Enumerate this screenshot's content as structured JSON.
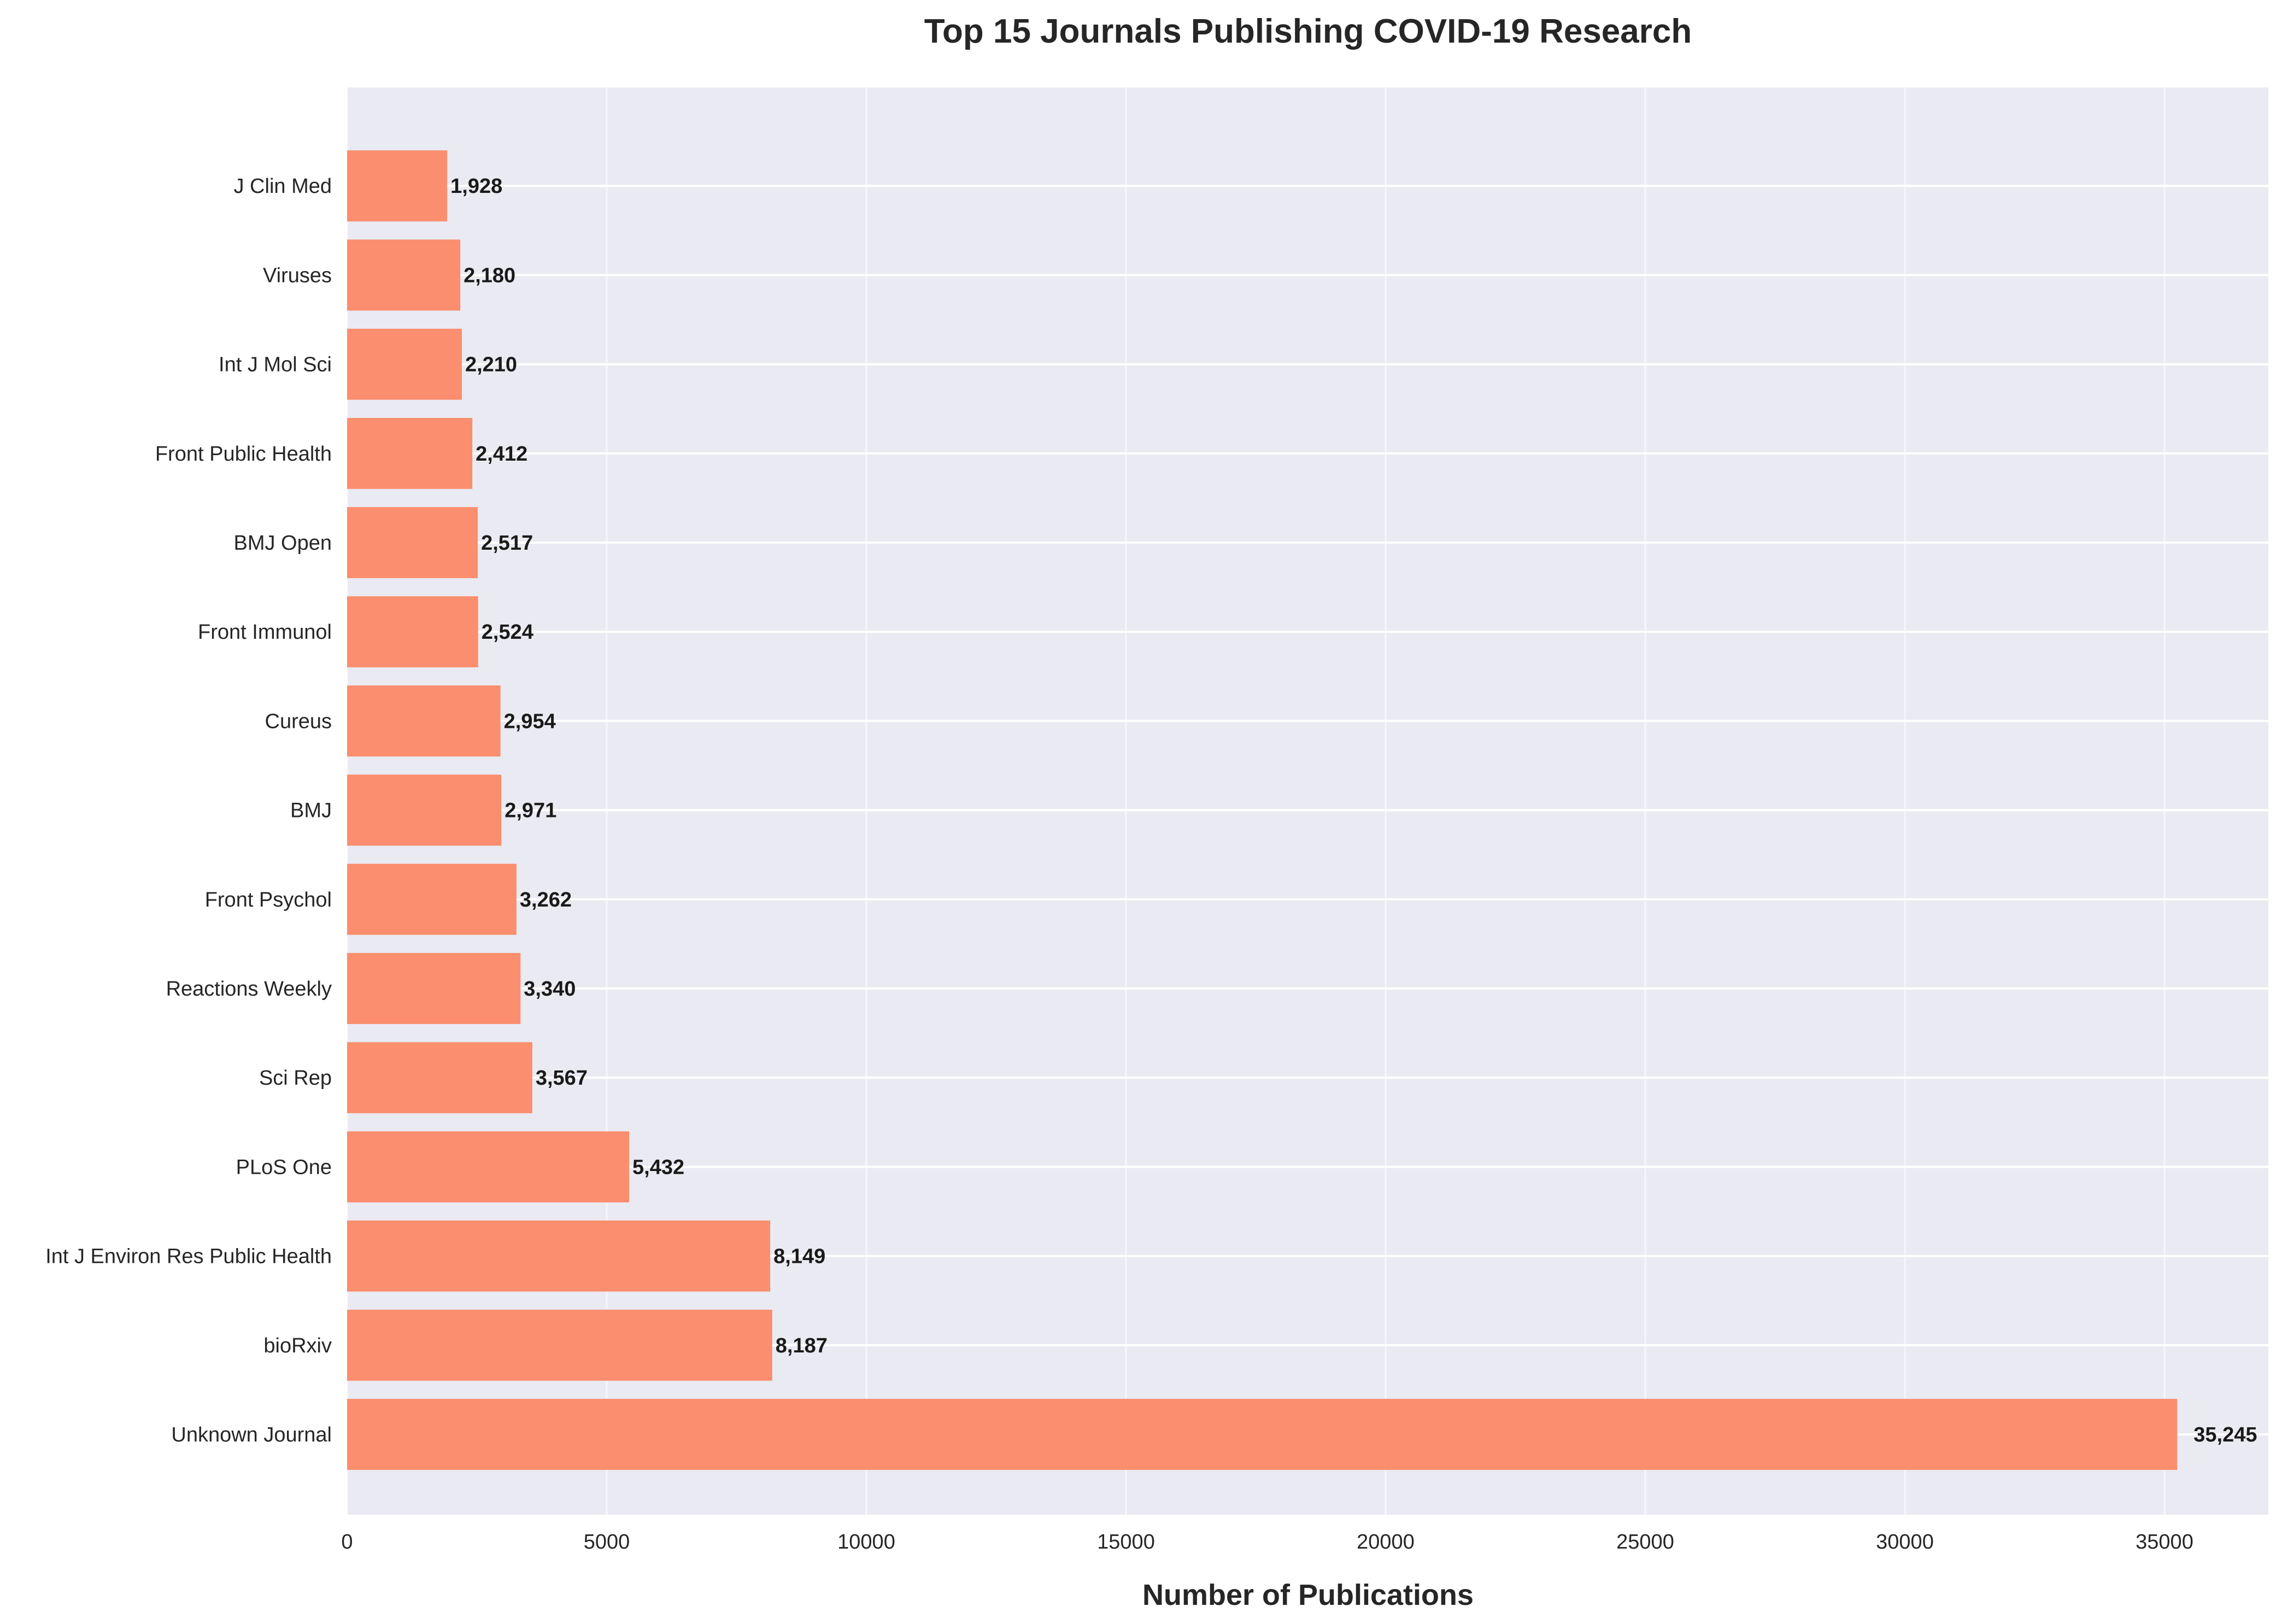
{
  "chart_data": {
    "type": "bar",
    "orientation": "horizontal",
    "title": "Top 15 Journals Publishing COVID-19 Research",
    "xlabel": "Number of Publications",
    "ylabel": "",
    "xlim": [
      0,
      37000
    ],
    "xticks": [
      0,
      5000,
      10000,
      15000,
      20000,
      25000,
      30000,
      35000
    ],
    "xtick_labels": [
      "0",
      "5000",
      "10000",
      "15000",
      "20000",
      "25000",
      "30000",
      "35000"
    ],
    "grid": true,
    "bar_color": "#fa8e6e",
    "background_color": "#eaeaf2",
    "categories": [
      "Unknown Journal",
      "bioRxiv",
      "Int J Environ Res Public Health",
      "PLoS One",
      "Sci Rep",
      "Reactions Weekly",
      "Front Psychol",
      "BMJ",
      "Cureus",
      "Front Immunol",
      "BMJ Open",
      "Front Public Health",
      "Int J Mol Sci",
      "Viruses",
      "J Clin Med"
    ],
    "values": [
      35245,
      8187,
      8149,
      5432,
      3567,
      3340,
      3262,
      2971,
      2954,
      2524,
      2517,
      2412,
      2210,
      2180,
      1928
    ],
    "data_labels": [
      "35,245",
      "8,187",
      "8,149",
      "5,432",
      "3,567",
      "3,340",
      "3,262",
      "2,971",
      "2,954",
      "2,524",
      "2,517",
      "2,412",
      "2,210",
      "2,180",
      "1,928"
    ]
  }
}
